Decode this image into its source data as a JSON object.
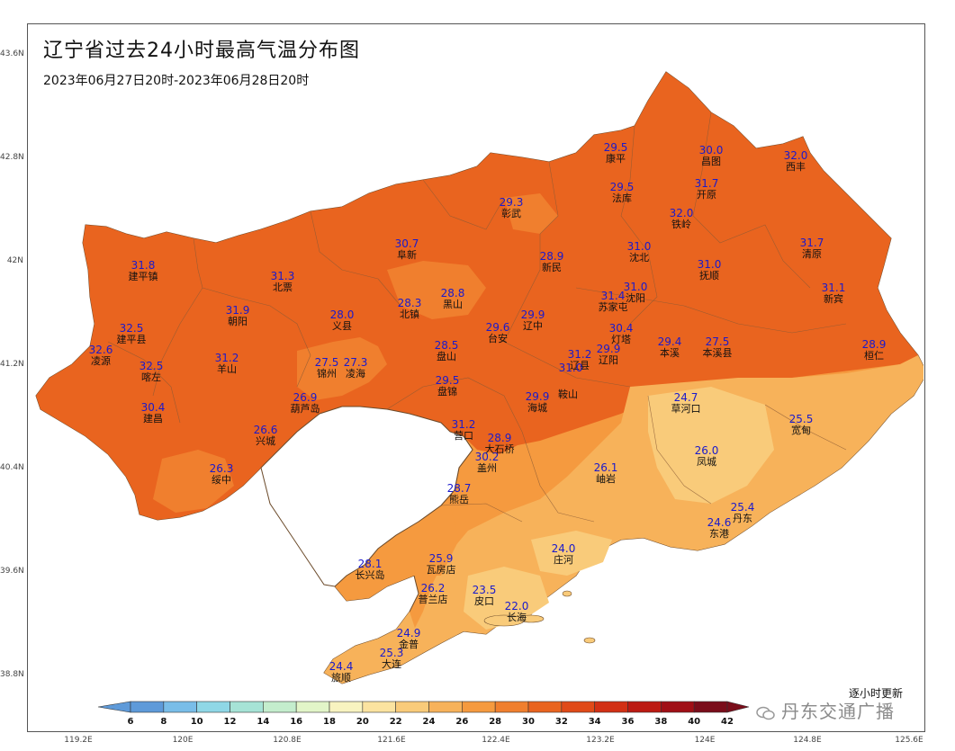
{
  "title": "辽宁省过去24小时最高气温分布图",
  "subtitle": "2023年06月27日20时-2023年06月28日20时",
  "lat_ticks": [
    "43.6N",
    "42.8N",
    "42N",
    "41.2N",
    "40.4N",
    "39.6N",
    "38.8N"
  ],
  "lon_ticks": [
    "119.2E",
    "120E",
    "120.8E",
    "121.6E",
    "122.4E",
    "123.2E",
    "124E",
    "124.8E",
    "125.6E"
  ],
  "legend": {
    "labels": [
      "6",
      "8",
      "10",
      "12",
      "14",
      "16",
      "18",
      "20",
      "22",
      "24",
      "26",
      "28",
      "30",
      "32",
      "34",
      "36",
      "38",
      "40",
      "42"
    ],
    "colors": [
      "#5e9ad9",
      "#79bde8",
      "#8fd7e6",
      "#a6e3d6",
      "#c4edcd",
      "#e2f5c8",
      "#f8f3c0",
      "#fbe3a0",
      "#f9cb7a",
      "#f7b25a",
      "#f59a3f",
      "#f07f2e",
      "#e9641f",
      "#e04a18",
      "#d23014",
      "#bc1a12",
      "#a00f16",
      "#7a0d1a"
    ]
  },
  "update_note": "逐小时更新",
  "watermark": "丹东交通广播",
  "stations": [
    {
      "value": "29.5",
      "name": "康平"
    },
    {
      "value": "30.0",
      "name": "昌图"
    },
    {
      "value": "32.0",
      "name": "西丰"
    },
    {
      "value": "29.3",
      "name": "彰武"
    },
    {
      "value": "29.5",
      "name": "法库"
    },
    {
      "value": "31.7",
      "name": "开原"
    },
    {
      "value": "32.0",
      "name": "铁岭"
    },
    {
      "value": "30.7",
      "name": "阜新"
    },
    {
      "value": "31.8",
      "name": "建平镇"
    },
    {
      "value": "31.3",
      "name": "北票"
    },
    {
      "value": "28.9",
      "name": "新民"
    },
    {
      "value": "31.0",
      "name": "沈北"
    },
    {
      "value": "31.0",
      "name": "抚顺"
    },
    {
      "value": "31.7",
      "name": "清原"
    },
    {
      "value": "31.1",
      "name": "新宾"
    },
    {
      "value": "31.9",
      "name": "朝阳"
    },
    {
      "value": "28.3",
      "name": "北镇"
    },
    {
      "value": "28.8",
      "name": "黑山"
    },
    {
      "value": "31.4",
      "name": "苏家屯"
    },
    {
      "value": "31.0",
      "name": "沈阳"
    },
    {
      "value": "32.5",
      "name": "建平县"
    },
    {
      "value": "28.0",
      "name": "义县"
    },
    {
      "value": "29.6",
      "name": "台安"
    },
    {
      "value": "29.9",
      "name": "辽中"
    },
    {
      "value": "30.4",
      "name": "灯塔"
    },
    {
      "value": "29.4",
      "name": "本溪"
    },
    {
      "value": "27.5",
      "name": "本溪县"
    },
    {
      "value": "28.9",
      "name": "桓仁"
    },
    {
      "value": "32.6",
      "name": "凌源"
    },
    {
      "value": "31.2",
      "name": "羊山"
    },
    {
      "value": "28.5",
      "name": "盘山"
    },
    {
      "value": "31.2",
      "name": "辽县"
    },
    {
      "value": "29.9",
      "name": "辽阳"
    },
    {
      "value": "32.5",
      "name": "喀左"
    },
    {
      "value": "27.5",
      "name": "锦州"
    },
    {
      "value": "27.3",
      "name": "凌海"
    },
    {
      "value": "29.5",
      "name": "盘锦"
    },
    {
      "value": "31.0",
      "name": ""
    },
    {
      "value": "29.9",
      "name": "海城"
    },
    {
      "value": "",
      "name": "鞍山"
    },
    {
      "value": "24.7",
      "name": "草河口"
    },
    {
      "value": "26.9",
      "name": "葫芦岛"
    },
    {
      "value": "30.4",
      "name": "建昌"
    },
    {
      "value": "26.6",
      "name": "兴城"
    },
    {
      "value": "31.2",
      "name": "营口"
    },
    {
      "value": "28.9",
      "name": "大石桥"
    },
    {
      "value": "25.5",
      "name": "宽甸"
    },
    {
      "value": "30.2",
      "name": "盖州"
    },
    {
      "value": "26.0",
      "name": "凤城"
    },
    {
      "value": "26.3",
      "name": "绥中"
    },
    {
      "value": "26.1",
      "name": "岫岩"
    },
    {
      "value": "28.7",
      "name": "熊岳"
    },
    {
      "value": "25.4",
      "name": "丹东"
    },
    {
      "value": "24.6",
      "name": "东港"
    },
    {
      "value": "28.1",
      "name": "长兴岛"
    },
    {
      "value": "25.9",
      "name": "瓦房店"
    },
    {
      "value": "24.0",
      "name": "庄河"
    },
    {
      "value": "26.2",
      "name": "普兰店"
    },
    {
      "value": "23.5",
      "name": "皮口"
    },
    {
      "value": "22.0",
      "name": "长海"
    },
    {
      "value": "24.9",
      "name": "金普"
    },
    {
      "value": "25.3",
      "name": "大连"
    },
    {
      "value": "24.4",
      "name": "旅顺"
    }
  ]
}
